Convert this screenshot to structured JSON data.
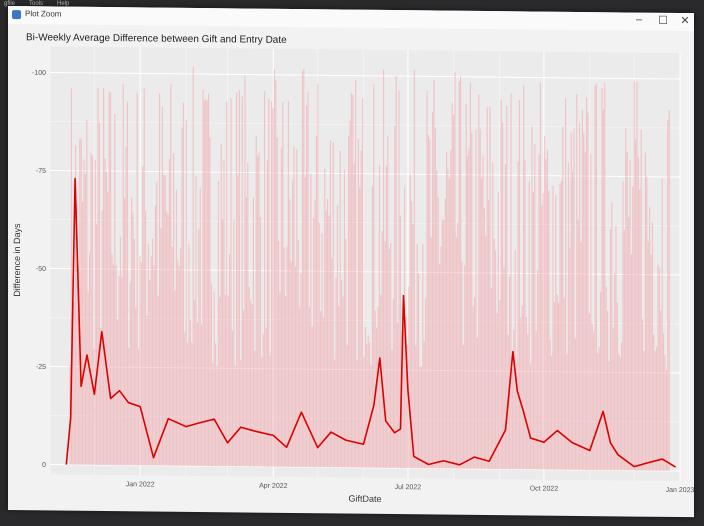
{
  "window": {
    "title": "Plot Zoom"
  },
  "menu": {
    "items": [
      "gfile",
      "Tools",
      "Help"
    ]
  },
  "controls": {
    "minimize": "–",
    "maximize": "☐",
    "close": "✕"
  },
  "chart_data": {
    "type": "line",
    "title": "Bi-Weekly Average Difference between Gift and Entry Date",
    "xlabel": "GiftDate",
    "ylabel": "Difference in Days",
    "ylim": [
      0,
      100
    ],
    "xlim": [
      "2021-11-01",
      "2023-01-01"
    ],
    "y_ticks": [
      0,
      25,
      50,
      75,
      100
    ],
    "y_tick_labels": [
      "0",
      "-25",
      "-50",
      "-75",
      "-100"
    ],
    "x_ticks": [
      "Jan 2022",
      "Apr 2022",
      "Jul 2022",
      "Oct 2022",
      "Jan 2023"
    ],
    "x_tick_dates": [
      "2022-01-01",
      "2022-04-01",
      "2022-07-01",
      "2022-10-01",
      "2023-01-01"
    ],
    "grid": true,
    "series": [
      {
        "color": "#dd0000",
        "x": [
          "2021-11-12",
          "2021-11-15",
          "2021-11-18",
          "2021-11-22",
          "2021-11-26",
          "2021-12-01",
          "2021-12-06",
          "2021-12-12",
          "2021-12-18",
          "2021-12-24",
          "2022-01-01",
          "2022-01-10",
          "2022-01-20",
          "2022-02-01",
          "2022-02-10",
          "2022-02-20",
          "2022-03-01",
          "2022-03-10",
          "2022-03-20",
          "2022-04-01",
          "2022-04-10",
          "2022-04-20",
          "2022-05-01",
          "2022-05-10",
          "2022-05-20",
          "2022-06-01",
          "2022-06-08",
          "2022-06-12",
          "2022-06-16",
          "2022-06-22",
          "2022-06-26",
          "2022-06-28",
          "2022-07-01",
          "2022-07-05",
          "2022-07-15",
          "2022-07-25",
          "2022-08-05",
          "2022-08-15",
          "2022-08-25",
          "2022-09-05",
          "2022-09-10",
          "2022-09-13",
          "2022-09-17",
          "2022-09-22",
          "2022-10-01",
          "2022-10-10",
          "2022-10-20",
          "2022-11-01",
          "2022-11-10",
          "2022-11-15",
          "2022-11-20",
          "2022-12-01",
          "2022-12-10",
          "2022-12-20",
          "2022-12-29"
        ],
        "values": [
          0,
          12,
          73,
          20,
          28,
          18,
          34,
          17,
          19,
          16,
          15,
          2,
          12,
          10,
          11,
          12,
          6,
          10,
          9,
          8,
          5,
          14,
          5,
          9,
          7,
          6,
          16,
          28,
          12,
          9,
          10,
          44,
          20,
          3,
          1,
          2,
          1,
          3,
          2,
          10,
          30,
          20,
          15,
          8,
          7,
          10,
          7,
          5,
          15,
          7,
          4,
          1,
          2,
          3,
          1
        ]
      }
    ]
  }
}
